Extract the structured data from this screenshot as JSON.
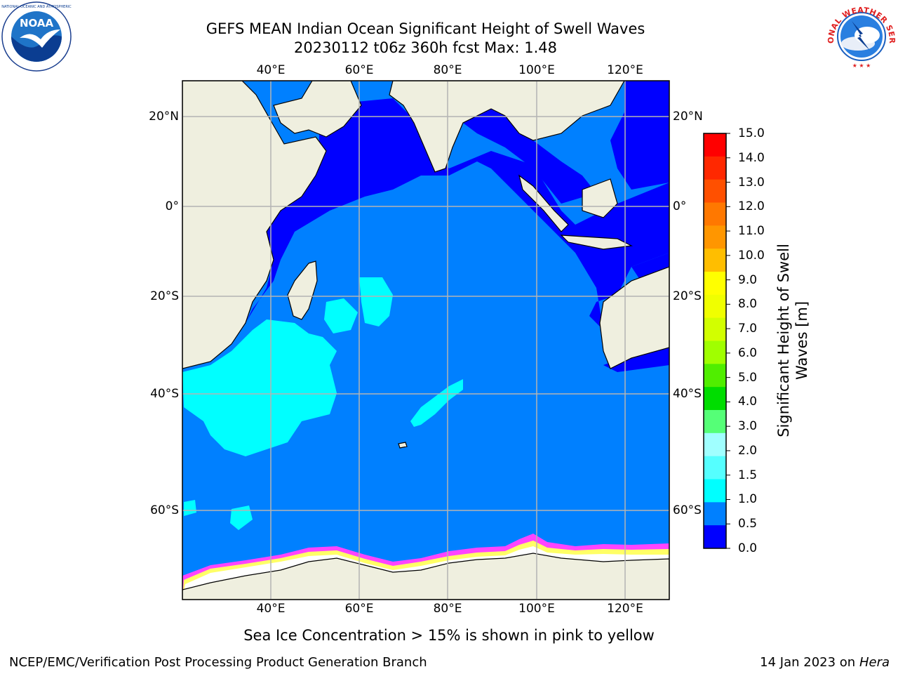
{
  "title": {
    "line1": "GEFS MEAN Indian Ocean Significant Height of Swell Waves",
    "line2": "20230112 t06z 360h fcst   Max: 1.48"
  },
  "logos": {
    "left": {
      "icon": "noaa-logo",
      "text": "NOAA"
    },
    "right": {
      "icon": "nws-logo",
      "text": "NATIONAL WEATHER SERVICE"
    }
  },
  "map": {
    "lon_range": [
      20,
      130
    ],
    "lat_range": [
      -73,
      28
    ],
    "grid": true,
    "lon_ticks": [
      "40°E",
      "60°E",
      "80°E",
      "100°E",
      "120°E"
    ],
    "lat_ticks_left": [
      "20°N",
      "0°",
      "20°S",
      "40°S",
      "60°S"
    ],
    "lat_ticks_right": [
      "20°N",
      "0°",
      "20°S",
      "40°S",
      "60°S"
    ],
    "colors": {
      "land": "#efefdf",
      "ocean_low": "#0000ff",
      "ocean_mid": "#0080ff",
      "ocean_high": "#00ffff",
      "ice": "#ffffff",
      "ice_edge": "#ff44ff",
      "grid": "#b4b4b4"
    }
  },
  "colorbar": {
    "labels": [
      "15.0",
      "14.0",
      "13.0",
      "12.0",
      "11.0",
      "10.0",
      "9.0",
      "8.0",
      "7.0",
      "6.0",
      "5.0",
      "4.0",
      "3.0",
      "2.0",
      "1.5",
      "1.0",
      "0.5",
      "0.0"
    ],
    "colors": [
      "#ff0000",
      "#ff2800",
      "#ff5000",
      "#ff7800",
      "#ff9600",
      "#ffbe00",
      "#ffff00",
      "#f0ff00",
      "#d2ff00",
      "#a0ff00",
      "#50ee00",
      "#00dd00",
      "#55ff77",
      "#a0ffff",
      "#55ffff",
      "#00ffff",
      "#0080ff",
      "#0000ff"
    ],
    "title_line1": "Significant Height of Swell",
    "title_line2": "Waves [m]"
  },
  "caption": "Sea Ice Concentration > 15% is shown in pink to yellow",
  "footer": {
    "left": "NCEP/EMC/Verification Post Processing Product Generation Branch",
    "right_date": "14 Jan 2023 on ",
    "right_host": "Hera"
  }
}
